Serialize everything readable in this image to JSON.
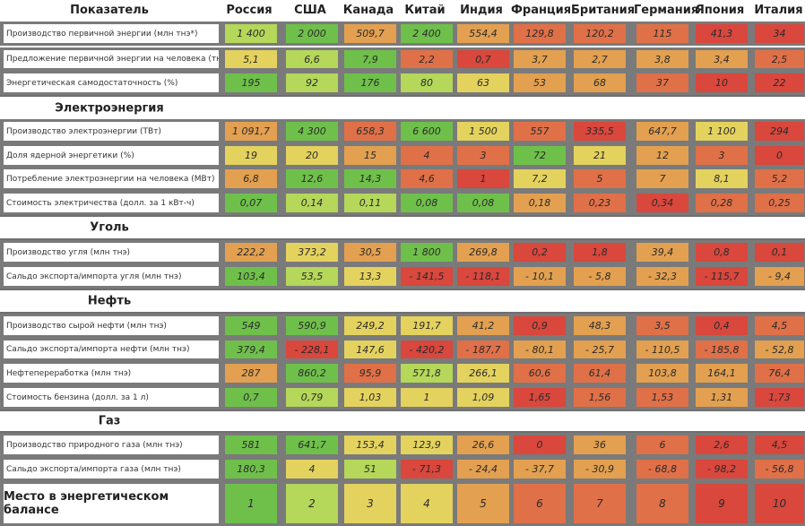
{
  "header": {
    "label": "Показатель",
    "countries": [
      "Россия",
      "США",
      "Канада",
      "Китай",
      "Индия",
      "Франция",
      "Британия",
      "Германия",
      "Япония",
      "Италия"
    ]
  },
  "colors": {
    "dg": "#6fc04a",
    "lg": "#b5d75a",
    "yl": "#e4d25e",
    "or": "#e2a050",
    "ro": "#e07048",
    "rd": "#d9473d"
  },
  "rows": [
    {
      "type": "data",
      "label": "Производство первичной энергии (млн тнэ*)",
      "values": [
        "1 400",
        "2 000",
        "509,7",
        "2 400",
        "554,4",
        "129,8",
        "120,2",
        "115",
        "41,3",
        "34"
      ],
      "colors": [
        "lg",
        "dg",
        "or",
        "dg",
        "or",
        "ro",
        "ro",
        "ro",
        "rd",
        "rd"
      ]
    },
    {
      "type": "data",
      "label": "Предложение первичной энергии на человека (тнэ)",
      "values": [
        "5,1",
        "6,6",
        "7,9",
        "2,2",
        "0,7",
        "3,7",
        "2,7",
        "3,8",
        "3,4",
        "2,5"
      ],
      "colors": [
        "yl",
        "lg",
        "dg",
        "ro",
        "rd",
        "or",
        "or",
        "or",
        "or",
        "ro"
      ]
    },
    {
      "type": "data",
      "label": "Энергетическая самодостаточность (%)",
      "values": [
        "195",
        "92",
        "176",
        "80",
        "63",
        "53",
        "68",
        "37",
        "10",
        "22"
      ],
      "colors": [
        "dg",
        "lg",
        "dg",
        "lg",
        "yl",
        "or",
        "or",
        "ro",
        "rd",
        "rd"
      ]
    },
    {
      "type": "section",
      "label": "Электроэнергия"
    },
    {
      "type": "data",
      "label": "Производство электроэнергии (ТВт)",
      "values": [
        "1 091,7",
        "4 300",
        "658,3",
        "6 600",
        "1 500",
        "557",
        "335,5",
        "647,7",
        "1 100",
        "294"
      ],
      "colors": [
        "or",
        "dg",
        "ro",
        "dg",
        "yl",
        "ro",
        "rd",
        "or",
        "yl",
        "rd"
      ]
    },
    {
      "type": "data",
      "label": "Доля ядерной энергетики (%)",
      "values": [
        "19",
        "20",
        "15",
        "4",
        "3",
        "72",
        "21",
        "12",
        "3",
        "0"
      ],
      "colors": [
        "yl",
        "yl",
        "or",
        "ro",
        "ro",
        "dg",
        "yl",
        "or",
        "ro",
        "rd"
      ]
    },
    {
      "type": "data",
      "label": "Потребление электроэнергии на человека (МВт)",
      "values": [
        "6,8",
        "12,6",
        "14,3",
        "4,6",
        "1",
        "7,2",
        "5",
        "7",
        "8,1",
        "5,2"
      ],
      "colors": [
        "or",
        "dg",
        "dg",
        "ro",
        "rd",
        "yl",
        "ro",
        "or",
        "yl",
        "ro"
      ]
    },
    {
      "type": "data",
      "label": "Стоимость электричества (долл. за 1 кВт-ч)",
      "values": [
        "0,07",
        "0,14",
        "0,11",
        "0,08",
        "0,08",
        "0,18",
        "0,23",
        "0,34",
        "0,28",
        "0,25"
      ],
      "colors": [
        "dg",
        "lg",
        "lg",
        "dg",
        "dg",
        "or",
        "ro",
        "rd",
        "ro",
        "ro"
      ]
    },
    {
      "type": "section",
      "label": "Уголь"
    },
    {
      "type": "data",
      "label": "Производство угля (млн тнэ)",
      "values": [
        "222,2",
        "373,2",
        "30,5",
        "1 800",
        "269,8",
        "0,2",
        "1,8",
        "39,4",
        "0,8",
        "0,1"
      ],
      "colors": [
        "or",
        "yl",
        "or",
        "dg",
        "or",
        "rd",
        "rd",
        "or",
        "rd",
        "rd"
      ]
    },
    {
      "type": "data",
      "label": "Сальдо экспорта/импорта угля (млн тнэ)",
      "values": [
        "103,4",
        "53,5",
        "13,3",
        "- 141,5",
        "- 118,1",
        "- 10,1",
        "- 5,8",
        "- 32,3",
        "- 115,7",
        "- 9,4"
      ],
      "colors": [
        "dg",
        "lg",
        "yl",
        "rd",
        "rd",
        "or",
        "or",
        "or",
        "rd",
        "or"
      ]
    },
    {
      "type": "section",
      "label": "Нефть"
    },
    {
      "type": "data",
      "label": "Производство сырой нефти (млн тнэ)",
      "values": [
        "549",
        "590,9",
        "249,2",
        "191,7",
        "41,2",
        "0,9",
        "48,3",
        "3,5",
        "0,4",
        "4,5"
      ],
      "colors": [
        "dg",
        "dg",
        "yl",
        "yl",
        "or",
        "rd",
        "or",
        "ro",
        "rd",
        "ro"
      ]
    },
    {
      "type": "data",
      "label": "Сальдо экспорта/импорта нефти (млн тнэ)",
      "values": [
        "379,4",
        "- 228,1",
        "147,6",
        "- 420,2",
        "- 187,7",
        "- 80,1",
        "- 25,7",
        "- 110,5",
        "- 185,8",
        "- 52,8"
      ],
      "colors": [
        "dg",
        "rd",
        "yl",
        "rd",
        "ro",
        "or",
        "or",
        "or",
        "ro",
        "or"
      ]
    },
    {
      "type": "data",
      "label": "Нефтепереработка (млн тнэ)",
      "values": [
        "287",
        "860,2",
        "95,9",
        "571,8",
        "266,1",
        "60,6",
        "61,4",
        "103,8",
        "164,1",
        "76,4"
      ],
      "colors": [
        "or",
        "dg",
        "ro",
        "lg",
        "yl",
        "ro",
        "ro",
        "or",
        "or",
        "ro"
      ]
    },
    {
      "type": "data",
      "label": "Стоимость бензина (долл. за 1 л)",
      "values": [
        "0,7",
        "0,79",
        "1,03",
        "1",
        "1,09",
        "1,65",
        "1,56",
        "1,53",
        "1,31",
        "1,73"
      ],
      "colors": [
        "dg",
        "lg",
        "yl",
        "yl",
        "yl",
        "rd",
        "ro",
        "ro",
        "or",
        "rd"
      ]
    },
    {
      "type": "section",
      "label": "Газ"
    },
    {
      "type": "data",
      "label": "Производство природного газа (млн тнэ)",
      "values": [
        "581",
        "641,7",
        "153,4",
        "123,9",
        "26,6",
        "0",
        "36",
        "6",
        "2,6",
        "4,5"
      ],
      "colors": [
        "dg",
        "dg",
        "yl",
        "yl",
        "or",
        "rd",
        "or",
        "ro",
        "rd",
        "rd"
      ]
    },
    {
      "type": "data",
      "label": "Сальдо экспорта/импорта газа (млн тнэ)",
      "values": [
        "180,3",
        "4",
        "51",
        "- 71,3",
        "- 24,4",
        "- 37,7",
        "- 30,9",
        "- 68,8",
        "- 98,2",
        "- 56,8"
      ],
      "colors": [
        "dg",
        "yl",
        "lg",
        "rd",
        "or",
        "or",
        "or",
        "ro",
        "rd",
        "ro"
      ]
    },
    {
      "type": "final",
      "label": "Место в энергетическом балансе",
      "values": [
        "1",
        "2",
        "3",
        "4",
        "5",
        "6",
        "7",
        "8",
        "9",
        "10"
      ],
      "colors": [
        "dg",
        "lg",
        "yl",
        "yl",
        "or",
        "ro",
        "ro",
        "ro",
        "rd",
        "rd"
      ]
    }
  ]
}
